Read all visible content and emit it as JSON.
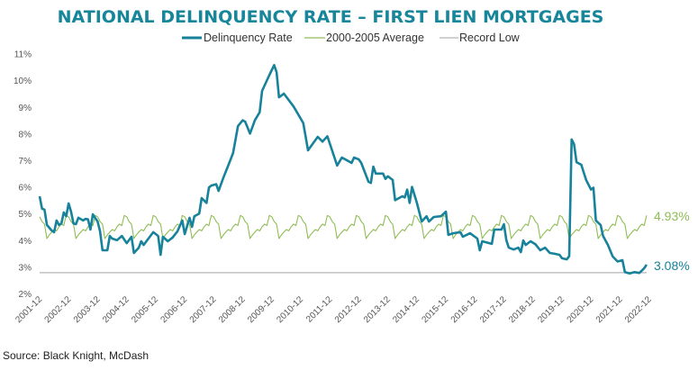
{
  "chart_data": {
    "type": "line",
    "title": "NATIONAL DELINQUENCY RATE – FIRST LIEN MORTGAGES",
    "source": "Source: Black Knight, McDash",
    "ylim": [
      2,
      11
    ],
    "yticks": [
      "2%",
      "3%",
      "4%",
      "5%",
      "6%",
      "7%",
      "8%",
      "9%",
      "10%",
      "11%"
    ],
    "ytick_values": [
      2,
      3,
      4,
      5,
      6,
      7,
      8,
      9,
      10,
      11
    ],
    "xticks": [
      "2001-12",
      "2002-12",
      "2003-12",
      "2004-12",
      "2005-12",
      "2006-12",
      "2007-12",
      "2008-12",
      "2009-12",
      "2010-12",
      "2011-12",
      "2012-12",
      "2013-12",
      "2014-12",
      "2015-12",
      "2016-12",
      "2017-12",
      "2018-12",
      "2019-12",
      "2020-12",
      "2021-12",
      "2022-12"
    ],
    "grid": false,
    "legend_position": "top-center",
    "colors": {
      "delinquency": "#17829a",
      "average": "#8fbd55",
      "record_low": "#b5b5b5",
      "title": "#17859a"
    },
    "legend": [
      "Delinquency Rate",
      "2000-2005 Average",
      "Record Low"
    ],
    "end_labels": {
      "delinquency": "3.08%",
      "average": "4.93%"
    },
    "series": [
      {
        "name": "Delinquency Rate",
        "points": [
          [
            "2001-12",
            5.65
          ],
          [
            "2002-01",
            5.18
          ],
          [
            "2002-02",
            5.15
          ],
          [
            "2002-03",
            4.57
          ],
          [
            "2002-05",
            4.36
          ],
          [
            "2002-06",
            4.3
          ],
          [
            "2002-07",
            4.74
          ],
          [
            "2002-08",
            4.57
          ],
          [
            "2002-09",
            4.63
          ],
          [
            "2002-10",
            5.04
          ],
          [
            "2002-11",
            4.9
          ],
          [
            "2002-12",
            5.38
          ],
          [
            "2003-01",
            5.07
          ],
          [
            "2003-02",
            4.63
          ],
          [
            "2003-03",
            4.6
          ],
          [
            "2003-04",
            4.84
          ],
          [
            "2003-06",
            4.74
          ],
          [
            "2003-07",
            4.8
          ],
          [
            "2003-08",
            4.78
          ],
          [
            "2003-09",
            4.4
          ],
          [
            "2003-10",
            4.97
          ],
          [
            "2003-12",
            4.7
          ],
          [
            "2004-01",
            4.33
          ],
          [
            "2004-02",
            3.62
          ],
          [
            "2004-04",
            3.62
          ],
          [
            "2004-05",
            4.16
          ],
          [
            "2004-06",
            4.06
          ],
          [
            "2004-08",
            4.0
          ],
          [
            "2004-10",
            4.16
          ],
          [
            "2004-12",
            3.89
          ],
          [
            "2005-02",
            4.13
          ],
          [
            "2005-03",
            3.52
          ],
          [
            "2005-05",
            3.72
          ],
          [
            "2005-06",
            3.96
          ],
          [
            "2005-07",
            3.82
          ],
          [
            "2005-09",
            4.06
          ],
          [
            "2005-11",
            4.3
          ],
          [
            "2006-01",
            4.16
          ],
          [
            "2006-02",
            3.45
          ],
          [
            "2006-03",
            4.13
          ],
          [
            "2006-05",
            3.96
          ],
          [
            "2006-07",
            4.1
          ],
          [
            "2006-09",
            4.33
          ],
          [
            "2006-11",
            4.74
          ],
          [
            "2006-12",
            4.23
          ],
          [
            "2007-02",
            4.84
          ],
          [
            "2007-03",
            4.5
          ],
          [
            "2007-04",
            4.9
          ],
          [
            "2007-06",
            5.0
          ],
          [
            "2007-07",
            5.58
          ],
          [
            "2007-09",
            5.4
          ],
          [
            "2007-10",
            5.98
          ],
          [
            "2007-11",
            6.05
          ],
          [
            "2008-01",
            6.1
          ],
          [
            "2008-02",
            5.85
          ],
          [
            "2008-04",
            6.35
          ],
          [
            "2008-06",
            6.8
          ],
          [
            "2008-08",
            7.27
          ],
          [
            "2008-10",
            8.28
          ],
          [
            "2008-12",
            8.5
          ],
          [
            "2009-01",
            8.45
          ],
          [
            "2009-03",
            8.0
          ],
          [
            "2009-05",
            8.5
          ],
          [
            "2009-07",
            8.8
          ],
          [
            "2009-08",
            9.6
          ],
          [
            "2009-11",
            10.2
          ],
          [
            "2010-01",
            10.57
          ],
          [
            "2010-02",
            10.3
          ],
          [
            "2010-03",
            9.36
          ],
          [
            "2010-05",
            9.5
          ],
          [
            "2010-09",
            9.02
          ],
          [
            "2011-01",
            8.4
          ],
          [
            "2011-03",
            7.37
          ],
          [
            "2011-07",
            7.88
          ],
          [
            "2011-09",
            7.7
          ],
          [
            "2011-11",
            7.9
          ],
          [
            "2012-03",
            6.8
          ],
          [
            "2012-05",
            7.1
          ],
          [
            "2012-09",
            6.9
          ],
          [
            "2012-10",
            7.1
          ],
          [
            "2012-12",
            7.03
          ],
          [
            "2013-01",
            6.9
          ],
          [
            "2013-04",
            6.19
          ],
          [
            "2013-05",
            6.15
          ],
          [
            "2013-06",
            6.76
          ],
          [
            "2013-07",
            6.5
          ],
          [
            "2013-10",
            6.5
          ],
          [
            "2013-11",
            6.3
          ],
          [
            "2013-12",
            6.4
          ],
          [
            "2014-02",
            6.26
          ],
          [
            "2014-03",
            5.5
          ],
          [
            "2014-06",
            5.65
          ],
          [
            "2014-07",
            5.6
          ],
          [
            "2014-08",
            5.9
          ],
          [
            "2014-09",
            5.4
          ],
          [
            "2014-10",
            6.0
          ],
          [
            "2014-12",
            5.4
          ],
          [
            "2015-02",
            4.7
          ],
          [
            "2015-04",
            4.9
          ],
          [
            "2015-05",
            4.7
          ],
          [
            "2015-07",
            4.87
          ],
          [
            "2015-10",
            4.9
          ],
          [
            "2015-12",
            5.07
          ],
          [
            "2016-01",
            4.2
          ],
          [
            "2016-03",
            4.26
          ],
          [
            "2016-06",
            4.3
          ],
          [
            "2016-07",
            4.13
          ],
          [
            "2016-10",
            4.26
          ],
          [
            "2017-01",
            4.06
          ],
          [
            "2017-02",
            3.62
          ],
          [
            "2017-03",
            3.96
          ],
          [
            "2017-07",
            3.86
          ],
          [
            "2017-08",
            4.4
          ],
          [
            "2017-11",
            4.4
          ],
          [
            "2017-12",
            4.6
          ],
          [
            "2018-01",
            4.0
          ],
          [
            "2018-02",
            3.72
          ],
          [
            "2018-04",
            3.65
          ],
          [
            "2018-06",
            3.72
          ],
          [
            "2018-07",
            3.55
          ],
          [
            "2018-08",
            3.99
          ],
          [
            "2018-09",
            3.82
          ],
          [
            "2018-11",
            3.96
          ],
          [
            "2019-01",
            3.85
          ],
          [
            "2019-03",
            3.62
          ],
          [
            "2019-05",
            3.72
          ],
          [
            "2019-07",
            3.52
          ],
          [
            "2019-09",
            3.49
          ],
          [
            "2019-11",
            3.45
          ],
          [
            "2019-12",
            3.32
          ],
          [
            "2020-02",
            3.28
          ],
          [
            "2020-03",
            3.4
          ],
          [
            "2020-04",
            7.78
          ],
          [
            "2020-05",
            7.6
          ],
          [
            "2020-06",
            6.93
          ],
          [
            "2020-08",
            6.83
          ],
          [
            "2020-10",
            6.26
          ],
          [
            "2020-12",
            5.9
          ],
          [
            "2021-01",
            5.97
          ],
          [
            "2021-02",
            4.74
          ],
          [
            "2021-04",
            4.57
          ],
          [
            "2021-05",
            4.16
          ],
          [
            "2021-07",
            3.82
          ],
          [
            "2021-09",
            3.39
          ],
          [
            "2021-11",
            3.2
          ],
          [
            "2022-01",
            3.25
          ],
          [
            "2022-02",
            2.8
          ],
          [
            "2022-04",
            2.75
          ],
          [
            "2022-06",
            2.8
          ],
          [
            "2022-08",
            2.77
          ],
          [
            "2022-10",
            2.95
          ],
          [
            "2022-11",
            3.08
          ]
        ]
      },
      {
        "name": "2000-2005 Average",
        "start": "2001-12",
        "end": "2022-11",
        "monthly_pattern": {
          "Jan": 4.7,
          "Feb": 4.6,
          "Mar": 4.06,
          "Apr": 4.2,
          "May": 4.3,
          "Jun": 4.4,
          "Jul": 4.35,
          "Aug": 4.5,
          "Sep": 4.6,
          "Oct": 4.55,
          "Nov": 4.93,
          "Dec": 4.88
        }
      },
      {
        "name": "Record Low",
        "value": 2.78
      }
    ]
  }
}
